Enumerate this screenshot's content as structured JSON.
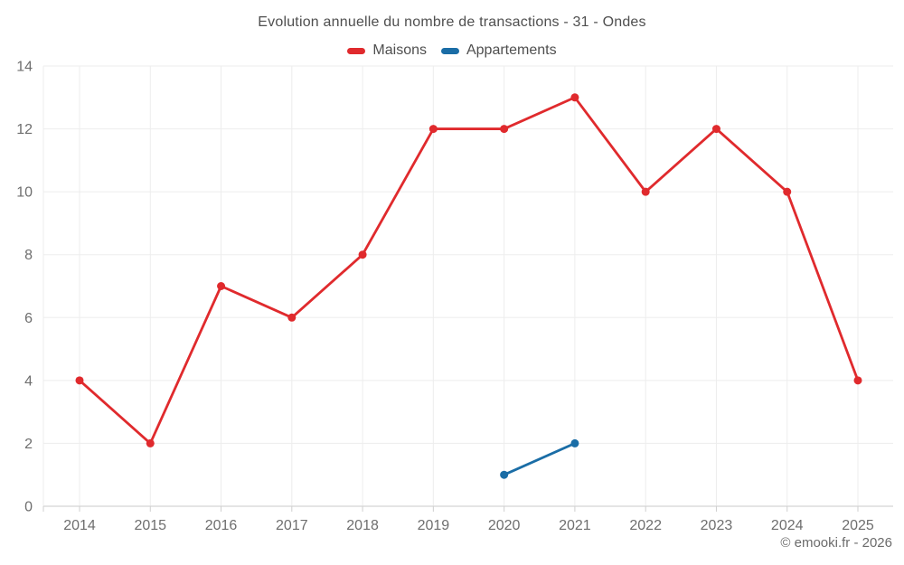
{
  "header": {
    "title": "Evolution annuelle du nombre de transactions - 31 - Ondes"
  },
  "chart_data": {
    "type": "line",
    "title": "Evolution annuelle du nombre de transactions - 31 - Ondes",
    "x": [
      2014,
      2015,
      2016,
      2017,
      2018,
      2019,
      2020,
      2021,
      2022,
      2023,
      2024,
      2025
    ],
    "xticklabels": [
      "2014",
      "2015",
      "2016",
      "2017",
      "2018",
      "2019",
      "2020",
      "2021",
      "2022",
      "2023",
      "2024",
      "2025"
    ],
    "series": [
      {
        "name": "Maisons",
        "color": "#e02a2d",
        "x": [
          2014,
          2015,
          2016,
          2017,
          2018,
          2019,
          2020,
          2021,
          2022,
          2023,
          2024,
          2025
        ],
        "values": [
          4,
          2,
          7,
          6,
          8,
          12,
          12,
          13,
          10,
          12,
          10,
          4
        ]
      },
      {
        "name": "Appartements",
        "color": "#1a6da6",
        "x": [
          2020,
          2021
        ],
        "values": [
          1,
          2
        ]
      }
    ],
    "ylim": [
      0,
      14
    ],
    "yticks": [
      0,
      2,
      4,
      6,
      8,
      10,
      12,
      14
    ],
    "grid": true,
    "legend_position": "top"
  },
  "footer": {
    "attribution": "© emooki.fr - 2026"
  }
}
